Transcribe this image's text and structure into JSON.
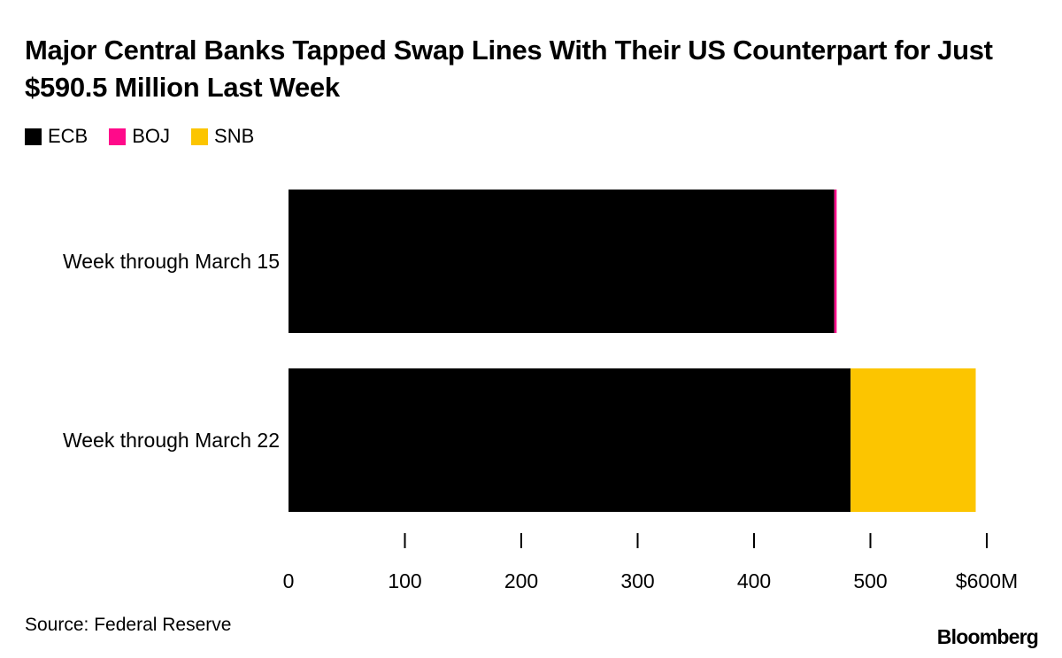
{
  "chart_data": {
    "type": "bar",
    "orientation": "horizontal",
    "stacked": true,
    "title": "Major Central Banks Tapped Swap Lines With Their US Counterpart for Just $590.5 Million Last Week",
    "categories": [
      "Week through March 15",
      "Week through March 22"
    ],
    "series": [
      {
        "name": "ECB",
        "color": "#000000",
        "values": [
          469,
          483
        ]
      },
      {
        "name": "BOJ",
        "color": "#ff0a8a",
        "values": [
          2,
          0
        ]
      },
      {
        "name": "SNB",
        "color": "#fcc500",
        "values": [
          0,
          107.5
        ]
      }
    ],
    "xlim": [
      0,
      600
    ],
    "xticks": [
      0,
      100,
      200,
      300,
      400,
      500,
      600
    ],
    "xtick_labels": [
      "0",
      "100",
      "200",
      "300",
      "400",
      "500",
      "$600M"
    ],
    "xlabel": "",
    "ylabel": "",
    "legend_position": "top-left",
    "source": "Source: Federal Reserve",
    "brand": "Bloomberg"
  }
}
